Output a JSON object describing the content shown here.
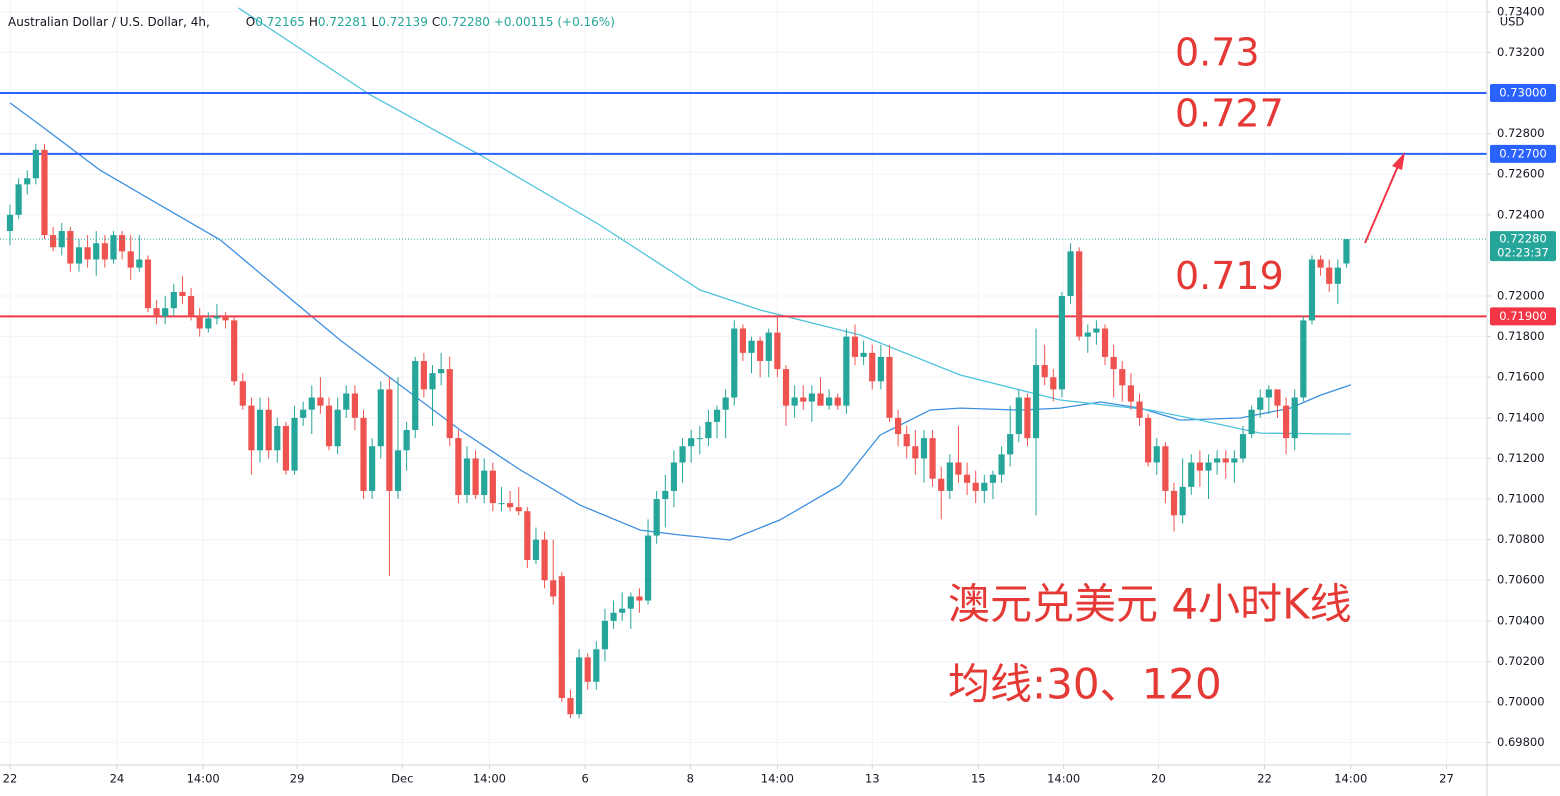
{
  "chart_data": {
    "type": "candlestick",
    "title": "Australian Dollar / U.S. Dollar, 4h,",
    "ohlc_legend": [
      {
        "key": "O",
        "value": "0.72165"
      },
      {
        "key": "H",
        "value": "0.72281"
      },
      {
        "key": "L",
        "value": "0.72139"
      },
      {
        "key": "C",
        "value": "0.72280"
      }
    ],
    "change": "+0.00115 (+0.16%)",
    "currency": "USD",
    "up_color": "#26a69a",
    "down_color": "#ef5350",
    "candles": {
      "open": [
        0.7232,
        0.724,
        0.7255,
        0.7258,
        0.7272,
        0.723,
        0.7224,
        0.7232,
        0.7216,
        0.7224,
        0.7218,
        0.7226,
        0.7218,
        0.723,
        0.7222,
        0.7214,
        0.7218,
        0.7194,
        0.719,
        0.7194,
        0.7202,
        0.72,
        0.719,
        0.7184,
        0.7189,
        0.719,
        0.7188,
        0.7158,
        0.7146,
        0.7124,
        0.7144,
        0.7124,
        0.7136,
        0.7114,
        0.714,
        0.7144,
        0.715,
        0.7146,
        0.7126,
        0.7144,
        0.7152,
        0.714,
        0.7104,
        0.7126,
        0.7154,
        0.7104,
        0.7124,
        0.7134,
        0.7168,
        0.7154,
        0.7162,
        0.7164,
        0.713,
        0.7102,
        0.712,
        0.7102,
        0.7114,
        0.7098,
        0.7098,
        0.7096,
        0.7094,
        0.707,
        0.708,
        0.706,
        0.7062,
        0.7002,
        0.6994,
        0.7022,
        0.701,
        0.7026,
        0.704,
        0.7044,
        0.7046,
        0.7052,
        0.705,
        0.7082,
        0.71,
        0.7104,
        0.7118,
        0.7126,
        0.713,
        0.713,
        0.7138,
        0.7144,
        0.715,
        0.7184,
        0.7172,
        0.7178,
        0.7168,
        0.7182,
        0.7164,
        0.7146,
        0.715,
        0.7148,
        0.7152,
        0.7146,
        0.715,
        0.7146,
        0.718,
        0.717,
        0.7172,
        0.7158,
        0.717,
        0.714,
        0.7132,
        0.7126,
        0.712,
        0.713,
        0.711,
        0.7104,
        0.7118,
        0.7112,
        0.7108,
        0.7104,
        0.7108,
        0.7112,
        0.7122,
        0.7132,
        0.715,
        0.713,
        0.7166,
        0.716,
        0.7154,
        0.72,
        0.7222,
        0.718,
        0.7182,
        0.7184,
        0.717,
        0.7164,
        0.7156,
        0.7148,
        0.714,
        0.7118,
        0.7126,
        0.7104,
        0.7092,
        0.7106,
        0.7118,
        0.7114,
        0.7118,
        0.712,
        0.7118,
        0.712,
        0.7132,
        0.7144,
        0.715,
        0.7154,
        0.7146,
        0.713,
        0.715,
        0.7188,
        0.7218,
        0.7214,
        0.7206,
        0.7216
      ],
      "high": [
        0.7245,
        0.7258,
        0.7262,
        0.7275,
        0.7275,
        0.7234,
        0.7236,
        0.7234,
        0.7228,
        0.723,
        0.7232,
        0.723,
        0.7232,
        0.7232,
        0.723,
        0.723,
        0.722,
        0.7198,
        0.72,
        0.7206,
        0.721,
        0.7204,
        0.7194,
        0.7192,
        0.7196,
        0.7192,
        0.719,
        0.7162,
        0.715,
        0.715,
        0.715,
        0.714,
        0.7138,
        0.7146,
        0.7148,
        0.7156,
        0.716,
        0.715,
        0.715,
        0.7156,
        0.7156,
        0.7144,
        0.713,
        0.7158,
        0.716,
        0.716,
        0.7138,
        0.717,
        0.7172,
        0.7166,
        0.7172,
        0.717,
        0.7134,
        0.7126,
        0.7124,
        0.712,
        0.7118,
        0.7106,
        0.7104,
        0.7106,
        0.7096,
        0.7086,
        0.7084,
        0.708,
        0.7064,
        0.7006,
        0.7026,
        0.7024,
        0.703,
        0.7046,
        0.705,
        0.7054,
        0.7054,
        0.7056,
        0.709,
        0.7104,
        0.7112,
        0.7124,
        0.713,
        0.7134,
        0.7136,
        0.7144,
        0.7146,
        0.7154,
        0.7188,
        0.7186,
        0.718,
        0.718,
        0.7184,
        0.719,
        0.7166,
        0.7156,
        0.7156,
        0.7156,
        0.716,
        0.7154,
        0.7152,
        0.7184,
        0.7186,
        0.7178,
        0.7176,
        0.7176,
        0.7176,
        0.7144,
        0.7136,
        0.7134,
        0.7134,
        0.7134,
        0.7116,
        0.7122,
        0.7136,
        0.7118,
        0.7114,
        0.7112,
        0.7114,
        0.7126,
        0.7146,
        0.7154,
        0.7152,
        0.7184,
        0.7176,
        0.7164,
        0.7202,
        0.7226,
        0.7224,
        0.7186,
        0.7188,
        0.7186,
        0.7176,
        0.7168,
        0.7162,
        0.7152,
        0.7142,
        0.713,
        0.7128,
        0.7108,
        0.712,
        0.7122,
        0.7124,
        0.7122,
        0.7124,
        0.7124,
        0.7124,
        0.7136,
        0.7146,
        0.7154,
        0.7156,
        0.7154,
        0.715,
        0.7154,
        0.719,
        0.722,
        0.722,
        0.7218,
        0.7218,
        0.7228
      ],
      "low": [
        0.7225,
        0.7238,
        0.725,
        0.7255,
        0.7228,
        0.7222,
        0.722,
        0.7212,
        0.7212,
        0.7214,
        0.721,
        0.7214,
        0.7216,
        0.7218,
        0.7208,
        0.7212,
        0.7192,
        0.7186,
        0.7186,
        0.719,
        0.7196,
        0.7188,
        0.718,
        0.7182,
        0.7186,
        0.7184,
        0.7156,
        0.7144,
        0.7112,
        0.7118,
        0.712,
        0.7118,
        0.7112,
        0.7112,
        0.7136,
        0.7132,
        0.7142,
        0.7124,
        0.7122,
        0.714,
        0.7134,
        0.71,
        0.71,
        0.712,
        0.7062,
        0.71,
        0.7114,
        0.713,
        0.715,
        0.7136,
        0.7156,
        0.7126,
        0.7098,
        0.7098,
        0.71,
        0.7098,
        0.7094,
        0.7094,
        0.7094,
        0.7092,
        0.7066,
        0.7068,
        0.7056,
        0.7048,
        0.7,
        0.6992,
        0.6992,
        0.7006,
        0.7006,
        0.702,
        0.7036,
        0.704,
        0.7036,
        0.7044,
        0.7048,
        0.7078,
        0.7086,
        0.7096,
        0.7108,
        0.7118,
        0.7122,
        0.7126,
        0.713,
        0.713,
        0.7146,
        0.7168,
        0.7162,
        0.716,
        0.716,
        0.716,
        0.7136,
        0.714,
        0.7144,
        0.7138,
        0.7146,
        0.7144,
        0.7144,
        0.7142,
        0.7166,
        0.7166,
        0.7154,
        0.7154,
        0.7138,
        0.7126,
        0.712,
        0.7112,
        0.7108,
        0.7106,
        0.709,
        0.71,
        0.7108,
        0.7102,
        0.7098,
        0.7098,
        0.71,
        0.7108,
        0.7116,
        0.7128,
        0.7126,
        0.7092,
        0.7156,
        0.7148,
        0.715,
        0.7196,
        0.7178,
        0.7172,
        0.7176,
        0.7166,
        0.715,
        0.7148,
        0.7144,
        0.7136,
        0.7116,
        0.7112,
        0.7098,
        0.7084,
        0.7088,
        0.7102,
        0.7106,
        0.71,
        0.7112,
        0.711,
        0.7108,
        0.7118,
        0.713,
        0.714,
        0.7142,
        0.714,
        0.7122,
        0.7124,
        0.7148,
        0.7186,
        0.721,
        0.7202,
        0.7196,
        0.7214
      ],
      "close": [
        0.724,
        0.7255,
        0.7258,
        0.7272,
        0.723,
        0.7224,
        0.7232,
        0.7216,
        0.7224,
        0.7218,
        0.7226,
        0.7218,
        0.723,
        0.7222,
        0.7214,
        0.7218,
        0.7194,
        0.719,
        0.7194,
        0.7202,
        0.72,
        0.719,
        0.7184,
        0.7189,
        0.719,
        0.7188,
        0.7158,
        0.7146,
        0.7124,
        0.7144,
        0.7124,
        0.7136,
        0.7114,
        0.714,
        0.7144,
        0.715,
        0.7146,
        0.7126,
        0.7144,
        0.7152,
        0.714,
        0.7104,
        0.7126,
        0.7154,
        0.7104,
        0.7124,
        0.7134,
        0.7168,
        0.7154,
        0.7162,
        0.7164,
        0.713,
        0.7102,
        0.712,
        0.7102,
        0.7114,
        0.7098,
        0.7098,
        0.7096,
        0.7094,
        0.707,
        0.708,
        0.706,
        0.7052,
        0.7002,
        0.6994,
        0.7022,
        0.701,
        0.7026,
        0.704,
        0.7044,
        0.7046,
        0.7052,
        0.705,
        0.7082,
        0.71,
        0.7104,
        0.7118,
        0.7126,
        0.713,
        0.713,
        0.7138,
        0.7144,
        0.715,
        0.7184,
        0.7172,
        0.7178,
        0.7168,
        0.7182,
        0.7164,
        0.7146,
        0.715,
        0.7148,
        0.7152,
        0.7146,
        0.715,
        0.7146,
        0.718,
        0.717,
        0.7172,
        0.7158,
        0.717,
        0.714,
        0.7132,
        0.7126,
        0.712,
        0.713,
        0.711,
        0.7104,
        0.7118,
        0.7112,
        0.7108,
        0.7104,
        0.7108,
        0.7112,
        0.7122,
        0.7132,
        0.715,
        0.713,
        0.7166,
        0.716,
        0.7154,
        0.72,
        0.7222,
        0.718,
        0.7182,
        0.7184,
        0.717,
        0.7164,
        0.7156,
        0.7148,
        0.714,
        0.7118,
        0.7126,
        0.7104,
        0.7092,
        0.7106,
        0.7118,
        0.7114,
        0.7118,
        0.712,
        0.7118,
        0.712,
        0.7132,
        0.7144,
        0.715,
        0.7154,
        0.7146,
        0.713,
        0.715,
        0.7188,
        0.7218,
        0.7214,
        0.7206,
        0.7214,
        0.7228
      ]
    },
    "series": [
      {
        "color": "#3d8fe0",
        "x": [
          0,
          3.5,
          10.4,
          17.4,
          24.4,
          31.3,
          38.3,
          45.2,
          52.2,
          59.2,
          66.1,
          73.1,
          77.7,
          83.5,
          89.3,
          96.3,
          100.9,
          106.7,
          110.2,
          117.2,
          121.8,
          126.5,
          131.1,
          135.7,
          142.7,
          148.5,
          152,
          155.5
        ],
        "values": [
          0.72951,
          0.72842,
          0.72621,
          0.72448,
          0.72276,
          0.7203,
          0.71783,
          0.71562,
          0.7134,
          0.71143,
          0.7097,
          0.70847,
          0.70823,
          0.70798,
          0.70897,
          0.71069,
          0.71315,
          0.71438,
          0.71448,
          0.71438,
          0.71448,
          0.71478,
          0.71448,
          0.71389,
          0.71399,
          0.71448,
          0.71512,
          0.71562
        ]
      },
      {
        "color": "#4fc3dc",
        "x": [
          26.5,
          41.8,
          54.5,
          68.4,
          80,
          87,
          98.6,
          110.2,
          121.8,
          132.3,
          138,
          145,
          155.5
        ],
        "values": [
          0.73419,
          0.7299,
          0.72695,
          0.7235,
          0.7203,
          0.71931,
          0.71808,
          0.71611,
          0.71488,
          0.71438,
          0.71389,
          0.71325,
          0.7132
        ]
      }
    ],
    "levels": [
      {
        "value": 0.73,
        "label": "0.73000",
        "note": "0.73",
        "color": "#2962ff"
      },
      {
        "value": 0.727,
        "label": "0.72700",
        "note": "0.727",
        "color": "#2962ff"
      },
      {
        "value": 0.719,
        "label": "0.71900",
        "note": "0.719",
        "color": "#f23645"
      }
    ],
    "last_price": {
      "value": 0.7228,
      "label": "0.72280",
      "countdown": "02:23:37",
      "color": "#26a69a"
    },
    "annotations": [
      "澳元兑美元 4小时K线",
      "均线:30、120"
    ],
    "xlim": [
      -1.16,
      171.3
    ],
    "ylim": [
      0.6969,
      0.73458
    ],
    "yticks": [
      {
        "value": 0.734,
        "label": "0.73400"
      },
      {
        "value": 0.732,
        "label": "0.73200"
      },
      {
        "value": 0.728,
        "label": "0.72800"
      },
      {
        "value": 0.726,
        "label": "0.72600"
      },
      {
        "value": 0.724,
        "label": "0.72400"
      },
      {
        "value": 0.72,
        "label": "0.72000"
      },
      {
        "value": 0.718,
        "label": "0.71800"
      },
      {
        "value": 0.716,
        "label": "0.71600"
      },
      {
        "value": 0.714,
        "label": "0.71400"
      },
      {
        "value": 0.712,
        "label": "0.71200"
      },
      {
        "value": 0.71,
        "label": "0.71000"
      },
      {
        "value": 0.708,
        "label": "0.70800"
      },
      {
        "value": 0.706,
        "label": "0.70600"
      },
      {
        "value": 0.704,
        "label": "0.70400"
      },
      {
        "value": 0.702,
        "label": "0.70200"
      },
      {
        "value": 0.7,
        "label": "0.70000"
      },
      {
        "value": 0.698,
        "label": "0.69800"
      }
    ],
    "xticks": [
      {
        "value": 0,
        "label": "22"
      },
      {
        "value": 12.4,
        "label": "24"
      },
      {
        "value": 22.4,
        "label": "14:00"
      },
      {
        "value": 33.3,
        "label": "29"
      },
      {
        "value": 45.5,
        "label": "Dec"
      },
      {
        "value": 55.6,
        "label": "14:00"
      },
      {
        "value": 66.7,
        "label": "6"
      },
      {
        "value": 78.9,
        "label": "8"
      },
      {
        "value": 89,
        "label": "14:00"
      },
      {
        "value": 100,
        "label": "13"
      },
      {
        "value": 112.3,
        "label": "15"
      },
      {
        "value": 122.2,
        "label": "14:00"
      },
      {
        "value": 133.2,
        "label": "20"
      },
      {
        "value": 145.5,
        "label": "22"
      },
      {
        "value": 155.5,
        "label": "14:00"
      },
      {
        "value": 166.6,
        "label": "27"
      }
    ],
    "grid": true
  }
}
